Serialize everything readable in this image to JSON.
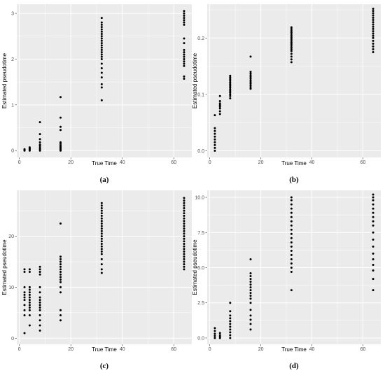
{
  "figure": {
    "background": "#ffffff",
    "panel_background": "#ebebeb",
    "grid_color": "#ffffff",
    "point_color": "#000000"
  },
  "chart_data": [
    {
      "caption": "(a)",
      "type": "scatter",
      "xlabel": "True Time",
      "ylabel": "Estimated pseudotime",
      "xlim": [
        -1,
        67
      ],
      "ylim": [
        -0.15,
        3.2
      ],
      "xticks": [
        0,
        20,
        40,
        60
      ],
      "yticks": [
        0,
        1,
        2,
        3
      ],
      "ytick_labels": [
        "0",
        "1",
        "2",
        "3"
      ],
      "grid": true,
      "series": [
        {
          "x": 2,
          "y": [
            0.0,
            0.02,
            0.03
          ]
        },
        {
          "x": 4,
          "y": [
            0.0,
            0.02,
            0.04,
            0.05,
            0.07
          ]
        },
        {
          "x": 8,
          "y": [
            0.0,
            0.03,
            0.06,
            0.1,
            0.13,
            0.18,
            0.25,
            0.36,
            0.62
          ]
        },
        {
          "x": 16,
          "y": [
            0.0,
            0.02,
            0.04,
            0.06,
            0.08,
            0.1,
            0.12,
            0.15,
            0.18,
            0.45,
            0.52,
            0.72,
            1.17
          ]
        },
        {
          "x": 32,
          "y": [
            1.1,
            1.38,
            1.45,
            1.6,
            1.7,
            1.8,
            1.9,
            2.0,
            2.05,
            2.1,
            2.15,
            2.2,
            2.25,
            2.3,
            2.35,
            2.4,
            2.45,
            2.5,
            2.55,
            2.6,
            2.65,
            2.7,
            2.75,
            2.8,
            2.9
          ]
        },
        {
          "x": 64,
          "y": [
            1.57,
            1.62,
            1.85,
            1.9,
            1.95,
            2.0,
            2.05,
            2.1,
            2.15,
            2.2,
            2.35,
            2.45,
            2.75,
            2.8,
            2.85,
            2.9,
            2.95,
            3.0,
            3.05
          ]
        }
      ]
    },
    {
      "caption": "(b)",
      "type": "scatter",
      "xlabel": "True Time",
      "ylabel": "Estimated pseudotime",
      "xlim": [
        -1,
        67
      ],
      "ylim": [
        -0.012,
        0.26
      ],
      "xticks": [
        0,
        20,
        40,
        60
      ],
      "yticks": [
        0.0,
        0.1,
        0.2
      ],
      "ytick_labels": [
        "0.0",
        "0.1",
        "0.2"
      ],
      "grid": true,
      "series": [
        {
          "x": 2,
          "y": [
            0.0,
            0.005,
            0.01,
            0.015,
            0.02,
            0.025,
            0.03,
            0.035,
            0.04,
            0.063
          ]
        },
        {
          "x": 4,
          "y": [
            0.065,
            0.07,
            0.075,
            0.078,
            0.081,
            0.084,
            0.088,
            0.097
          ]
        },
        {
          "x": 8,
          "y": [
            0.093,
            0.097,
            0.1,
            0.103,
            0.106,
            0.109,
            0.112,
            0.115,
            0.118,
            0.121,
            0.124,
            0.127,
            0.13,
            0.133
          ]
        },
        {
          "x": 16,
          "y": [
            0.11,
            0.113,
            0.116,
            0.119,
            0.122,
            0.125,
            0.128,
            0.131,
            0.134,
            0.137,
            0.14,
            0.167
          ]
        },
        {
          "x": 32,
          "y": [
            0.157,
            0.162,
            0.167,
            0.172,
            0.177,
            0.18,
            0.183,
            0.186,
            0.189,
            0.192,
            0.195,
            0.198,
            0.201,
            0.204,
            0.207,
            0.21,
            0.213,
            0.216,
            0.219
          ]
        },
        {
          "x": 64,
          "y": [
            0.175,
            0.18,
            0.185,
            0.19,
            0.195,
            0.2,
            0.204,
            0.208,
            0.212,
            0.216,
            0.22,
            0.224,
            0.228,
            0.232,
            0.236,
            0.24,
            0.244,
            0.248,
            0.252
          ]
        }
      ]
    },
    {
      "caption": "(c)",
      "type": "scatter",
      "xlabel": "True Time",
      "ylabel": "Estimated pseudotime",
      "xlim": [
        -1,
        67
      ],
      "ylim": [
        -1.2,
        29
      ],
      "xticks": [
        0,
        20,
        40,
        60
      ],
      "yticks": [
        0,
        10,
        20
      ],
      "ytick_labels": [
        "0",
        "10",
        "20"
      ],
      "grid": true,
      "series": [
        {
          "x": 2,
          "y": [
            1.0,
            4.5,
            5.5,
            6.5,
            7.5,
            8.0,
            8.5,
            9.0,
            10.0,
            13.0,
            13.5
          ]
        },
        {
          "x": 4,
          "y": [
            2.5,
            4.5,
            5.5,
            6.0,
            6.5,
            7.0,
            7.5,
            8.0,
            8.5,
            9.0,
            9.5,
            10.0,
            13.0,
            13.5
          ]
        },
        {
          "x": 8,
          "y": [
            1.5,
            2.5,
            3.5,
            4.5,
            5.5,
            6.0,
            6.5,
            7.0,
            7.5,
            8.0,
            9.0,
            10.0,
            12.5,
            13.0,
            13.5,
            14.0
          ]
        },
        {
          "x": 16,
          "y": [
            3.5,
            4.5,
            5.5,
            9.0,
            10.0,
            11.0,
            11.5,
            12.0,
            12.5,
            13.0,
            13.5,
            14.0,
            14.5,
            15.0,
            15.5,
            16.0,
            22.5
          ]
        },
        {
          "x": 32,
          "y": [
            12.8,
            13.5,
            14.5,
            15.5,
            16.5,
            17.0,
            17.5,
            18.0,
            18.5,
            19.0,
            19.5,
            20.0,
            20.5,
            21.0,
            21.5,
            22.0,
            22.5,
            23.0,
            23.5,
            24.0,
            24.5,
            25.0,
            25.5,
            26.0,
            26.5
          ]
        },
        {
          "x": 64,
          "y": [
            13.5,
            14.0,
            14.5,
            15.0,
            15.5,
            16.0,
            16.5,
            17.0,
            17.5,
            18.0,
            18.5,
            19.0,
            19.5,
            20.0,
            20.5,
            21.0,
            21.5,
            22.0,
            22.5,
            23.0,
            23.5,
            24.0,
            24.5,
            25.0,
            25.5,
            26.0,
            26.5,
            27.0,
            27.5
          ]
        }
      ]
    },
    {
      "caption": "(d)",
      "type": "scatter",
      "xlabel": "True Time",
      "ylabel": "Estimated pseudotime",
      "xlim": [
        -1,
        67
      ],
      "ylim": [
        -0.45,
        10.5
      ],
      "xticks": [
        0,
        20,
        40,
        60
      ],
      "yticks": [
        0.0,
        2.5,
        5.0,
        7.5,
        10.0
      ],
      "ytick_labels": [
        "0.0",
        "2.5",
        "5.0",
        "7.5",
        "10.0"
      ],
      "grid": true,
      "series": [
        {
          "x": 2,
          "y": [
            0.0,
            0.15,
            0.3,
            0.5,
            0.7
          ]
        },
        {
          "x": 4,
          "y": [
            0.0,
            0.1,
            0.2,
            0.35
          ]
        },
        {
          "x": 8,
          "y": [
            0.0,
            0.2,
            0.4,
            0.6,
            0.8,
            1.0,
            1.2,
            1.4,
            1.6,
            1.9,
            2.5
          ]
        },
        {
          "x": 16,
          "y": [
            0.6,
            1.0,
            1.3,
            1.6,
            2.0,
            2.5,
            2.8,
            3.0,
            3.2,
            3.4,
            3.6,
            3.8,
            4.0,
            4.2,
            4.4,
            4.6,
            5.6
          ]
        },
        {
          "x": 32,
          "y": [
            3.4,
            4.7,
            5.0,
            5.3,
            5.6,
            5.9,
            6.2,
            6.5,
            6.8,
            7.1,
            7.4,
            7.7,
            8.0,
            8.3,
            8.6,
            8.9,
            9.2,
            9.5,
            9.8,
            10.0
          ]
        },
        {
          "x": 64,
          "y": [
            3.4,
            4.2,
            4.8,
            5.2,
            5.6,
            6.0,
            6.5,
            7.0,
            7.5,
            8.0,
            8.3,
            8.6,
            8.9,
            9.2,
            9.5,
            9.8,
            10.0,
            10.2
          ]
        }
      ]
    }
  ]
}
